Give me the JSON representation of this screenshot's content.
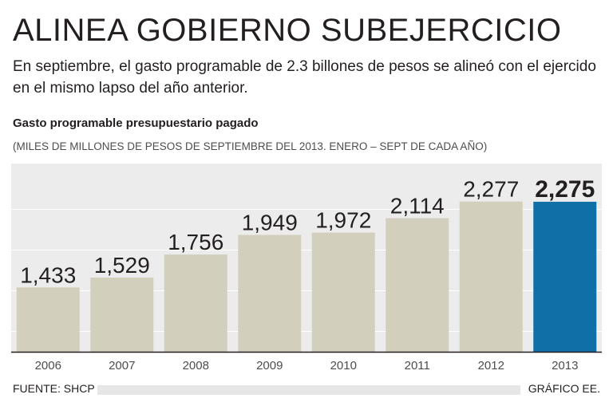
{
  "header": {
    "title": "ALINEA GOBIERNO SUBEJERCICIO",
    "subtitle": "En septiembre, el gasto programable de 2.3 billones de pesos se alineó con el ejercido en el mismo lapso del año anterior."
  },
  "chart_data": {
    "type": "bar",
    "title": "Gasto programable presupuestario pagado",
    "subtitle": "(MILES DE MILLONES DE PESOS DE SEPTIEMBRE DEL 2013. ENERO – SEPT DE CADA AÑO)",
    "categories": [
      "2006",
      "2007",
      "2008",
      "2009",
      "2010",
      "2011",
      "2012",
      "2013"
    ],
    "values": [
      1433,
      1529,
      1756,
      1949,
      1972,
      2114,
      2277,
      2275
    ],
    "labels": [
      "1,433",
      "1,529",
      "1,756",
      "1,949",
      "1,972",
      "2,114",
      "2,277",
      "2,275"
    ],
    "highlight_index": 7,
    "xlabel": "",
    "ylabel": "",
    "ylim": [
      800,
      2400
    ],
    "grid": true,
    "colors": {
      "bar": "#d3cfbd",
      "highlight": "#0f6fa6",
      "grid": "#e5e5e5",
      "axis": "#231f20",
      "panel": "#ececec"
    }
  },
  "footer": {
    "source": "FUENTE: SHCP",
    "credit": "GRÁFICO EE."
  }
}
